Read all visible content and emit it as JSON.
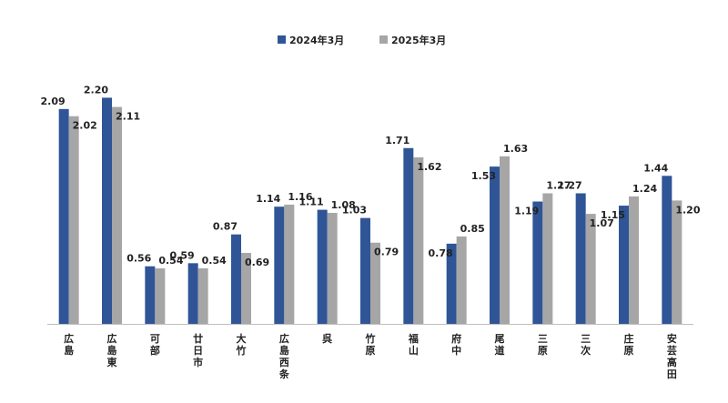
{
  "chart_data": {
    "type": "bar",
    "categories": [
      "広島",
      "広島東",
      "可部",
      "廿日市",
      "大竹",
      "広島西条",
      "呉",
      "竹原",
      "福山",
      "府中",
      "尾道",
      "三原",
      "三次",
      "庄原",
      "安芸高田"
    ],
    "series": [
      {
        "name": "2024年3月",
        "color": "#2F5597",
        "values": [
          2.09,
          2.2,
          0.56,
          0.59,
          0.87,
          1.14,
          1.11,
          1.03,
          1.71,
          0.78,
          1.53,
          1.19,
          1.27,
          1.15,
          1.44
        ]
      },
      {
        "name": "2025年3月",
        "color": "#A6A6A6",
        "values": [
          2.02,
          2.11,
          0.54,
          0.54,
          0.69,
          1.16,
          1.08,
          0.79,
          1.62,
          0.85,
          1.63,
          1.27,
          1.07,
          1.24,
          1.2
        ]
      }
    ],
    "ylim": [
      0,
      2.2
    ],
    "grid": false,
    "legend_position": "top-center"
  }
}
